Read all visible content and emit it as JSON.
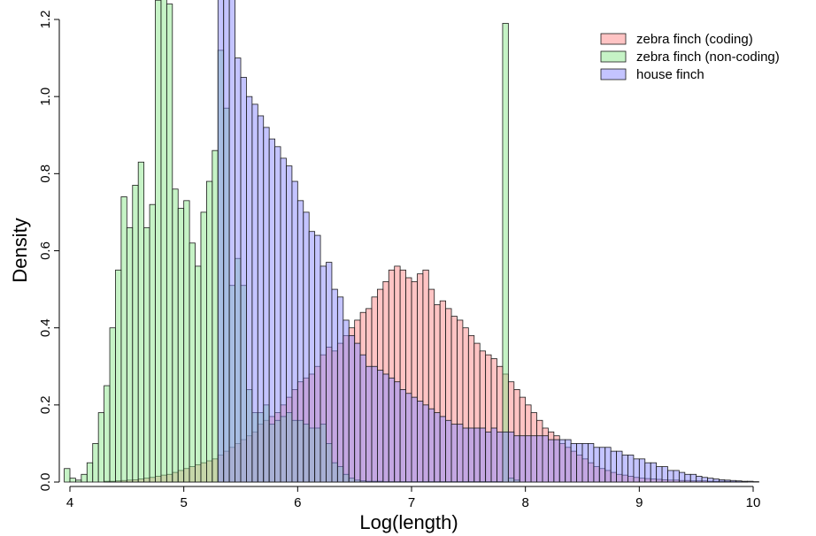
{
  "chart_data": {
    "type": "histogram",
    "xlabel": "Log(length)",
    "ylabel": "Density",
    "xlim": [
      3.9,
      10.25
    ],
    "ylim": [
      0,
      1.25
    ],
    "x_ticks": [
      4,
      5,
      6,
      7,
      8,
      9,
      10
    ],
    "y_ticks": [
      "0.0",
      "0.2",
      "0.4",
      "0.6",
      "0.8",
      "1.0",
      "1.2"
    ],
    "bin_width": 0.05,
    "legend_position": "top-right",
    "legend": [
      {
        "label": "zebra finch (coding)",
        "color": "#ff8a8a"
      },
      {
        "label": "zebra finch (non-coding)",
        "color": "#8ee88e"
      },
      {
        "label": "house finch",
        "color": "#8a8aff"
      }
    ],
    "series": [
      {
        "name": "zebra finch (coding)",
        "color": "#ff8a8a",
        "start": 4.3,
        "values": [
          0.002,
          0.002,
          0.003,
          0.004,
          0.005,
          0.006,
          0.008,
          0.01,
          0.012,
          0.015,
          0.018,
          0.02,
          0.025,
          0.03,
          0.035,
          0.04,
          0.045,
          0.05,
          0.055,
          0.06,
          0.07,
          0.08,
          0.09,
          0.1,
          0.11,
          0.12,
          0.13,
          0.15,
          0.16,
          0.17,
          0.18,
          0.2,
          0.22,
          0.24,
          0.26,
          0.27,
          0.28,
          0.3,
          0.33,
          0.35,
          0.34,
          0.36,
          0.38,
          0.4,
          0.42,
          0.44,
          0.45,
          0.48,
          0.5,
          0.52,
          0.55,
          0.56,
          0.55,
          0.53,
          0.52,
          0.54,
          0.55,
          0.5,
          0.46,
          0.47,
          0.45,
          0.43,
          0.42,
          0.4,
          0.38,
          0.36,
          0.34,
          0.33,
          0.32,
          0.3,
          0.28,
          0.26,
          0.24,
          0.22,
          0.2,
          0.18,
          0.16,
          0.14,
          0.13,
          0.12,
          0.1,
          0.09,
          0.08,
          0.07,
          0.06,
          0.05,
          0.04,
          0.035,
          0.03,
          0.025,
          0.02,
          0.018,
          0.015,
          0.012,
          0.01,
          0.009,
          0.008,
          0.007,
          0.006,
          0.005,
          0.005,
          0.004,
          0.004,
          0.003,
          0.003,
          0.003,
          0.002,
          0.002,
          0.002,
          0.002,
          0.001,
          0.001,
          0.001
        ]
      },
      {
        "name": "zebra finch (non-coding)",
        "color": "#8ee88e",
        "start": 3.95,
        "values": [
          0.035,
          0.01,
          0.005,
          0.02,
          0.05,
          0.1,
          0.18,
          0.25,
          0.4,
          0.55,
          0.74,
          0.66,
          0.77,
          0.83,
          0.66,
          0.72,
          1.25,
          1.27,
          1.24,
          0.76,
          0.71,
          0.73,
          0.62,
          0.56,
          0.7,
          0.78,
          0.86,
          1.12,
          0.97,
          0.51,
          0.58,
          0.51,
          0.24,
          0.18,
          0.18,
          0.2,
          0.15,
          0.16,
          0.17,
          0.18,
          0.16,
          0.16,
          0.15,
          0.14,
          0.14,
          0.15,
          0.1,
          0.05,
          0.04,
          0.02,
          0.01,
          0.005,
          0.003,
          0.002,
          0.002,
          0.002,
          0.001,
          0.001,
          0.001,
          0.001,
          0.001,
          0.001,
          0.001,
          0.001,
          0.001,
          0.001,
          0.001,
          0.001,
          0.001,
          0.001,
          0.001,
          0.001,
          0.001,
          0.001,
          0.001,
          0.001,
          0.001,
          1.19,
          0.01,
          0.005
        ]
      },
      {
        "name": "house finch",
        "color": "#8a8aff",
        "start": 5.3,
        "values": [
          1.3,
          1.35,
          1.29,
          1.1,
          1.05,
          1.0,
          0.98,
          0.95,
          0.92,
          0.89,
          0.87,
          0.84,
          0.82,
          0.78,
          0.73,
          0.7,
          0.65,
          0.64,
          0.56,
          0.57,
          0.5,
          0.48,
          0.42,
          0.38,
          0.36,
          0.33,
          0.3,
          0.3,
          0.29,
          0.28,
          0.27,
          0.26,
          0.24,
          0.23,
          0.22,
          0.21,
          0.2,
          0.19,
          0.18,
          0.17,
          0.16,
          0.15,
          0.15,
          0.14,
          0.14,
          0.14,
          0.14,
          0.13,
          0.14,
          0.13,
          0.13,
          0.13,
          0.12,
          0.12,
          0.12,
          0.12,
          0.12,
          0.12,
          0.11,
          0.11,
          0.11,
          0.11,
          0.1,
          0.1,
          0.1,
          0.1,
          0.09,
          0.09,
          0.09,
          0.08,
          0.08,
          0.07,
          0.07,
          0.06,
          0.06,
          0.05,
          0.05,
          0.04,
          0.04,
          0.03,
          0.03,
          0.025,
          0.02,
          0.02,
          0.015,
          0.012,
          0.01,
          0.008,
          0.006,
          0.005,
          0.004,
          0.003,
          0.002,
          0.002,
          0.001
        ]
      }
    ]
  }
}
